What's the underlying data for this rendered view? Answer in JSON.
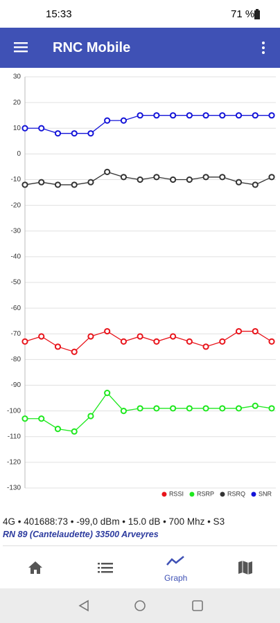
{
  "status_bar": {
    "time": "15:33",
    "battery": "71 %"
  },
  "app_bar": {
    "title": "RNC Mobile"
  },
  "chart_data": {
    "type": "line",
    "categories": [
      null,
      null,
      null,
      null,
      null,
      null,
      null,
      null,
      null,
      null,
      null,
      null,
      null,
      null,
      null,
      null
    ],
    "series": [
      {
        "name": "RSSI",
        "color": "#e8141b",
        "values": [
          -73,
          -71,
          -75,
          -77,
          -71,
          -69,
          -73,
          -71,
          -73,
          -71,
          -73,
          -75,
          -73,
          -69,
          -69,
          -73
        ]
      },
      {
        "name": "RSRP",
        "color": "#1ee81e",
        "values": [
          -103,
          -103,
          -107,
          -108,
          -102,
          -93,
          -100,
          -99,
          -99,
          -99,
          -99,
          -99,
          -99,
          -99,
          -98,
          -99
        ]
      },
      {
        "name": "RSRQ",
        "color": "#333333",
        "values": [
          -12,
          -11,
          -12,
          -12,
          -11,
          -7,
          -9,
          -10,
          -9,
          -10,
          -10,
          -9,
          -9,
          -11,
          -12,
          -9
        ]
      },
      {
        "name": "SNR",
        "color": "#1414d8",
        "values": [
          10,
          10,
          8,
          8,
          8,
          13,
          13,
          15,
          15,
          15,
          15,
          15,
          15,
          15,
          15,
          15
        ]
      }
    ],
    "ylim": [
      -130,
      30
    ],
    "yticks": [
      30,
      20,
      10,
      0,
      -10,
      -20,
      -30,
      -40,
      -50,
      -60,
      -70,
      -80,
      -90,
      -100,
      -110,
      -120,
      -130
    ],
    "grid": true,
    "legend": "bottom-right"
  },
  "info": {
    "line": "4G • 401688:73 • -99,0 dBm • 15.0 dB • 700 Mhz • S3",
    "location": "RN 89 (Cantelaudette) 33500 Arveyres"
  },
  "nav": {
    "active_label": "Graph"
  }
}
